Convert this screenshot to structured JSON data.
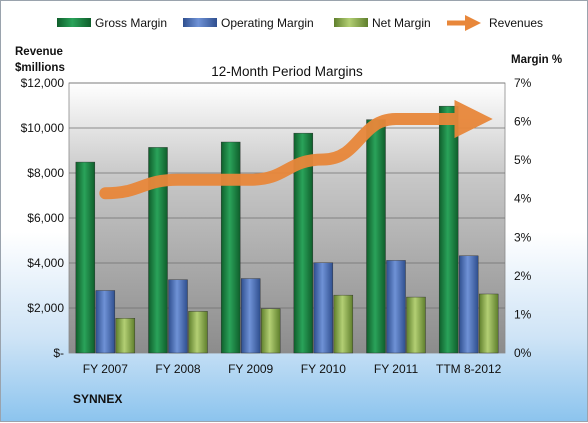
{
  "chart_data": {
    "type": "bar",
    "title": "12-Month Period Margins",
    "company": "SYNNEX",
    "categories": [
      "FY 2007",
      "FY 2008",
      "FY 2009",
      "FY 2010",
      "FY 2011",
      "TTM 8-2012"
    ],
    "left_axis": {
      "label_line1": "Revenue",
      "label_line2": "$millions",
      "min": 0,
      "max": 12000,
      "ticks": [
        {
          "value": 0,
          "label": "$-"
        },
        {
          "value": 2000,
          "label": "$2,000"
        },
        {
          "value": 4000,
          "label": "$4,000"
        },
        {
          "value": 6000,
          "label": "$6,000"
        },
        {
          "value": 8000,
          "label": "$8,000"
        },
        {
          "value": 10000,
          "label": "$10,000"
        },
        {
          "value": 12000,
          "label": "$12,000"
        }
      ]
    },
    "right_axis": {
      "label": "Margin %",
      "min": 0,
      "max": 7,
      "ticks": [
        {
          "value": 0,
          "label": "0%"
        },
        {
          "value": 1,
          "label": "1%"
        },
        {
          "value": 2,
          "label": "2%"
        },
        {
          "value": 3,
          "label": "3%"
        },
        {
          "value": 4,
          "label": "4%"
        },
        {
          "value": 5,
          "label": "5%"
        },
        {
          "value": 6,
          "label": "6%"
        },
        {
          "value": 7,
          "label": "7%"
        }
      ]
    },
    "series": [
      {
        "name": "Gross Margin",
        "axis": "right",
        "color": "#1e8a44",
        "values": [
          4.95,
          5.33,
          5.47,
          5.7,
          6.05,
          6.4
        ]
      },
      {
        "name": "Operating Margin",
        "axis": "right",
        "color": "#4a6fb5",
        "values": [
          1.62,
          1.9,
          1.93,
          2.34,
          2.4,
          2.52
        ]
      },
      {
        "name": "Net Margin",
        "axis": "right",
        "color": "#8fb34e",
        "values": [
          0.9,
          1.08,
          1.15,
          1.5,
          1.45,
          1.53
        ]
      },
      {
        "name": "Revenues",
        "axis": "left",
        "color": "#e8873a",
        "type": "line",
        "values": [
          7100,
          7700,
          7700,
          8600,
          10400,
          10400
        ]
      }
    ],
    "grid": true,
    "legend_position": "top"
  }
}
